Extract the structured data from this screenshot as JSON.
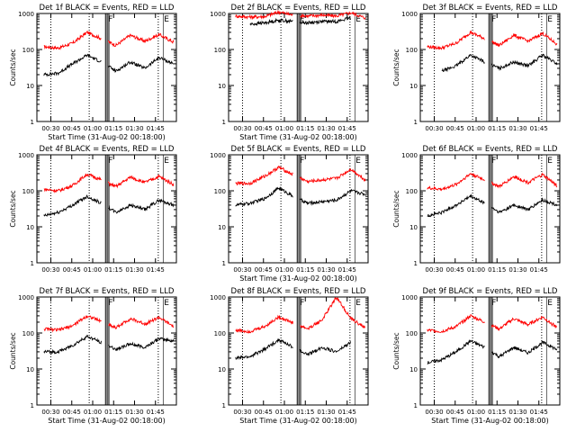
{
  "chart_data": [
    {
      "type": "line",
      "title": "Det 1f BLACK = Events, RED = LLD",
      "xlabel": "Start Time (31-Aug-02 00:18:00)",
      "ylabel": "Counts/sec",
      "yscale": "log",
      "ylim": [
        1,
        1000
      ],
      "x_ticks": [
        "00:30",
        "00:45",
        "01:00",
        "01:15",
        "01:30",
        "01:45"
      ],
      "y_ticks": [
        "1",
        "10",
        "100",
        "1000"
      ],
      "time_markers": [
        "F",
        "E"
      ],
      "series": [
        {
          "name": "LLD",
          "color": "#ff0000",
          "values": [
            120,
            110,
            150,
            300,
            200,
            130,
            250,
            170,
            260,
            160
          ]
        },
        {
          "name": "Events",
          "color": "#000000",
          "values": [
            20,
            22,
            40,
            70,
            45,
            25,
            45,
            30,
            60,
            40
          ]
        }
      ]
    },
    {
      "type": "line",
      "title": "Det 2f BLACK = Events, RED = LLD",
      "xlabel": "Start Time (31-Aug-02 00:18:00)",
      "ylabel": "",
      "yscale": "log",
      "ylim": [
        1,
        1000
      ],
      "x_ticks": [
        "00:30",
        "00:45",
        "01:00",
        "01:15",
        "01:30",
        "01:45"
      ],
      "y_ticks": [
        "1",
        "10",
        "100",
        "1000"
      ],
      "time_markers": [
        "F",
        "E"
      ],
      "series": [
        {
          "name": "LLD",
          "color": "#ff0000",
          "values": [
            850,
            800,
            820,
            1100,
            900,
            850,
            900,
            850,
            1050,
            750
          ]
        },
        {
          "name": "Events",
          "color": "#000000",
          "values": [
            null,
            500,
            550,
            650,
            600,
            550,
            600,
            600,
            750,
            null
          ]
        }
      ]
    },
    {
      "type": "line",
      "title": "Det 3f BLACK = Events, RED = LLD",
      "xlabel": "",
      "ylabel": "Counts/sec",
      "yscale": "log",
      "ylim": [
        1,
        1000
      ],
      "x_ticks": [
        "00:30",
        "00:45",
        "01:00",
        "01:15",
        "01:30",
        "01:45"
      ],
      "y_ticks": [
        "1",
        "10",
        "100",
        "1000"
      ],
      "time_markers": [
        "F",
        "E"
      ],
      "series": [
        {
          "name": "LLD",
          "color": "#ff0000",
          "values": [
            120,
            110,
            150,
            300,
            200,
            130,
            250,
            170,
            280,
            140
          ]
        },
        {
          "name": "Events",
          "color": "#000000",
          "values": [
            null,
            25,
            35,
            70,
            45,
            30,
            45,
            35,
            70,
            40
          ]
        }
      ]
    },
    {
      "type": "line",
      "title": "Det 4f BLACK = Events, RED = LLD",
      "xlabel": "",
      "ylabel": "Counts/sec",
      "yscale": "log",
      "ylim": [
        1,
        1000
      ],
      "x_ticks": [
        "00:30",
        "00:45",
        "01:00",
        "01:15",
        "01:30",
        "01:45"
      ],
      "y_ticks": [
        "1",
        "10",
        "100",
        "1000"
      ],
      "time_markers": [
        "F",
        "E"
      ],
      "series": [
        {
          "name": "LLD",
          "color": "#ff0000",
          "values": [
            110,
            100,
            140,
            290,
            200,
            130,
            240,
            170,
            250,
            150
          ]
        },
        {
          "name": "Events",
          "color": "#000000",
          "values": [
            20,
            25,
            40,
            70,
            45,
            25,
            40,
            30,
            55,
            40
          ]
        }
      ]
    },
    {
      "type": "line",
      "title": "Det 5f BLACK = Events, RED = LLD",
      "xlabel": "Start Time (31-Aug-02 00:18:00)",
      "ylabel": "",
      "yscale": "log",
      "ylim": [
        1,
        1000
      ],
      "x_ticks": [
        "00:30",
        "00:45",
        "01:00",
        "01:15",
        "01:30",
        "01:45"
      ],
      "y_ticks": [
        "1",
        "10",
        "100",
        "1000"
      ],
      "time_markers": [
        "F",
        "E"
      ],
      "series": [
        {
          "name": "LLD",
          "color": "#ff0000",
          "values": [
            160,
            160,
            250,
            450,
            280,
            180,
            200,
            220,
            400,
            200
          ]
        },
        {
          "name": "Events",
          "color": "#000000",
          "values": [
            40,
            45,
            60,
            120,
            70,
            45,
            50,
            55,
            100,
            80
          ]
        }
      ]
    },
    {
      "type": "line",
      "title": "Det 6f BLACK = Events, RED = LLD",
      "xlabel": "",
      "ylabel": "Counts/sec",
      "yscale": "log",
      "ylim": [
        1,
        1000
      ],
      "x_ticks": [
        "00:30",
        "00:45",
        "01:00",
        "01:15",
        "01:30",
        "01:45"
      ],
      "y_ticks": [
        "1",
        "10",
        "100",
        "1000"
      ],
      "time_markers": [
        "F",
        "E"
      ],
      "series": [
        {
          "name": "LLD",
          "color": "#ff0000",
          "values": [
            120,
            110,
            150,
            300,
            200,
            130,
            250,
            170,
            280,
            140
          ]
        },
        {
          "name": "Events",
          "color": "#000000",
          "values": [
            20,
            25,
            40,
            70,
            45,
            25,
            40,
            30,
            55,
            40
          ]
        }
      ]
    },
    {
      "type": "line",
      "title": "Det 7f BLACK = Events, RED = LLD",
      "xlabel": "Start Time (31-Aug-02 00:18:00)",
      "ylabel": "Counts/sec",
      "yscale": "log",
      "ylim": [
        1,
        1000
      ],
      "x_ticks": [
        "00:30",
        "00:45",
        "01:00",
        "01:15",
        "01:30",
        "01:45"
      ],
      "y_ticks": [
        "1",
        "10",
        "100",
        "1000"
      ],
      "time_markers": [
        "F",
        "E"
      ],
      "series": [
        {
          "name": "LLD",
          "color": "#ff0000",
          "values": [
            130,
            120,
            160,
            300,
            210,
            140,
            250,
            180,
            270,
            150
          ]
        },
        {
          "name": "Events",
          "color": "#000000",
          "values": [
            30,
            30,
            45,
            80,
            55,
            35,
            50,
            40,
            70,
            60
          ]
        }
      ]
    },
    {
      "type": "line",
      "title": "Det 8f BLACK = Events, RED = LLD",
      "xlabel": "Start Time (31-Aug-02 00:18:00)",
      "ylabel": "",
      "yscale": "log",
      "ylim": [
        1,
        1000
      ],
      "x_ticks": [
        "00:30",
        "00:45",
        "01:00",
        "01:15",
        "01:30",
        "01:45"
      ],
      "y_ticks": [
        "1",
        "10",
        "100",
        "1000"
      ],
      "time_markers": [
        "F",
        "E"
      ],
      "series": [
        {
          "name": "LLD",
          "color": "#ff0000",
          "values": [
            120,
            110,
            150,
            280,
            190,
            130,
            230,
            1000,
            250,
            140
          ]
        },
        {
          "name": "Events",
          "color": "#000000",
          "values": [
            20,
            22,
            35,
            65,
            40,
            25,
            40,
            30,
            55,
            null
          ]
        }
      ]
    },
    {
      "type": "line",
      "title": "Det 9f BLACK = Events, RED = LLD",
      "xlabel": "Start Time (31-Aug-02 00:18:00)",
      "ylabel": "Counts/sec",
      "yscale": "log",
      "ylim": [
        1,
        1000
      ],
      "x_ticks": [
        "00:30",
        "00:45",
        "01:00",
        "01:15",
        "01:30",
        "01:45"
      ],
      "y_ticks": [
        "1",
        "10",
        "100",
        "1000"
      ],
      "time_markers": [
        "F",
        "E"
      ],
      "series": [
        {
          "name": "LLD",
          "color": "#ff0000",
          "values": [
            120,
            110,
            150,
            300,
            200,
            130,
            250,
            170,
            280,
            140
          ]
        },
        {
          "name": "Events",
          "color": "#000000",
          "values": [
            15,
            18,
            30,
            60,
            40,
            22,
            40,
            28,
            55,
            35
          ]
        }
      ]
    }
  ]
}
